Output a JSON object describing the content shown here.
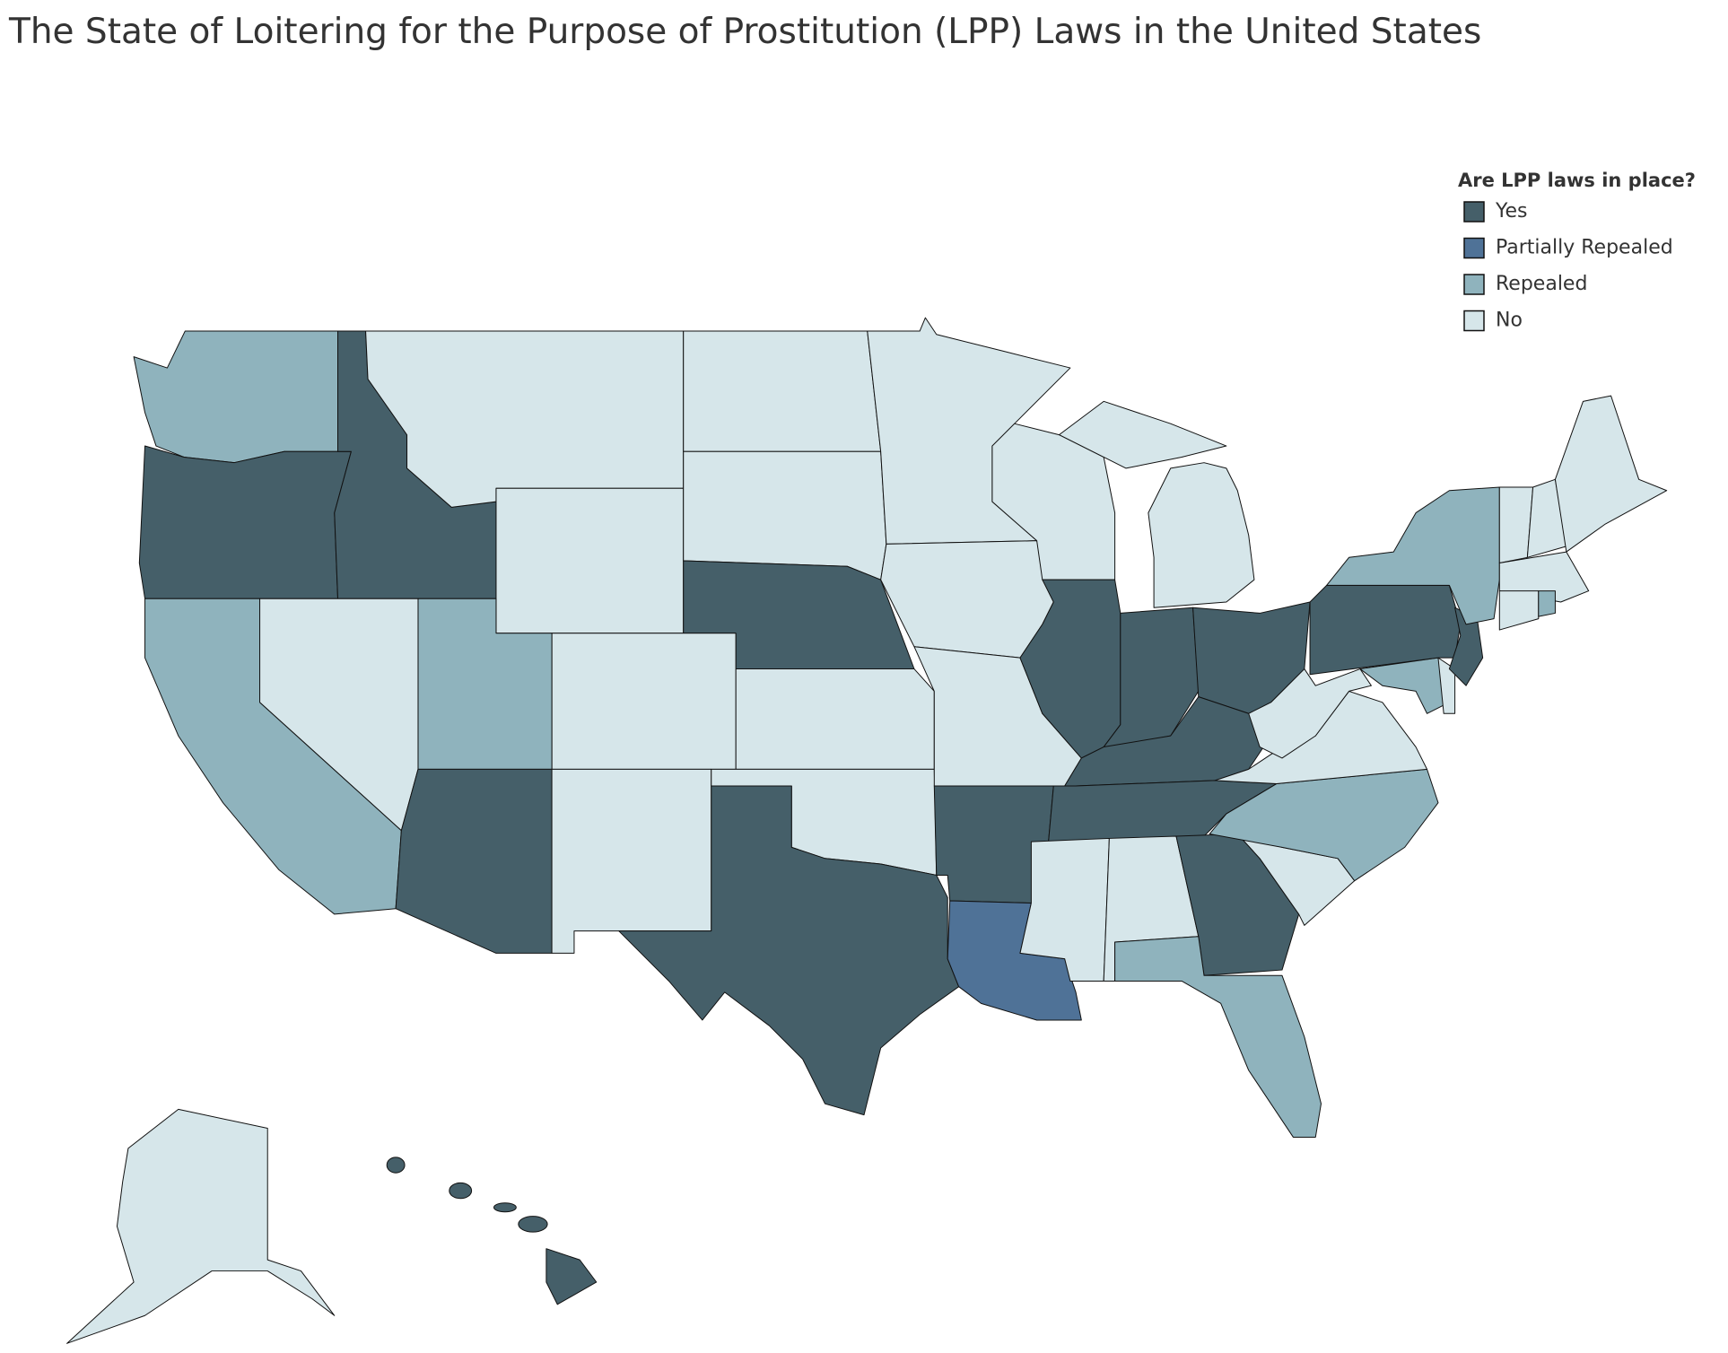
{
  "header": {
    "title": "The State of Loitering for the Purpose of Prostitution (LPP) Laws in the United States"
  },
  "legend": {
    "title": "Are LPP laws in place?",
    "items": [
      {
        "label": "Yes",
        "color": "#455f69"
      },
      {
        "label": "Partially Repealed",
        "color": "#4f7297"
      },
      {
        "label": "Repealed",
        "color": "#8fb3bd"
      },
      {
        "label": "No",
        "color": "#d6e6ea"
      }
    ]
  }
}
